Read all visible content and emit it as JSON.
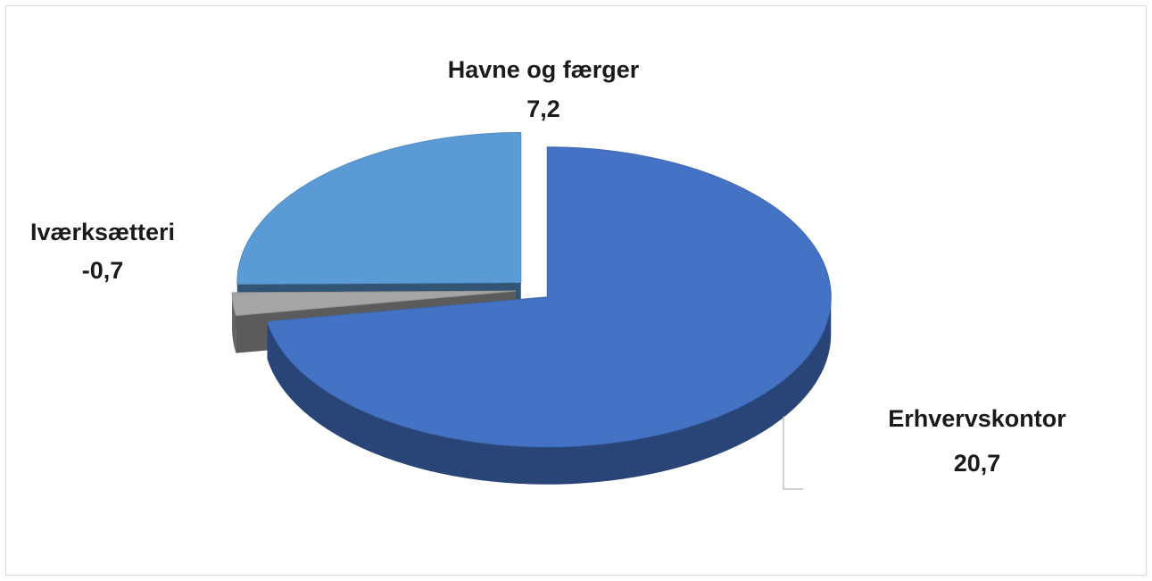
{
  "chart_data": {
    "type": "pie",
    "categories": [
      "Erhvervskontor",
      "Iværksætteri",
      "Havne og færger"
    ],
    "values": [
      20.7,
      -0.7,
      7.2
    ],
    "value_labels": [
      "20,7",
      "-0,7",
      "7,2"
    ],
    "colors": [
      "#4472c4",
      "#a5a5a5",
      "#5b9bd5"
    ]
  }
}
